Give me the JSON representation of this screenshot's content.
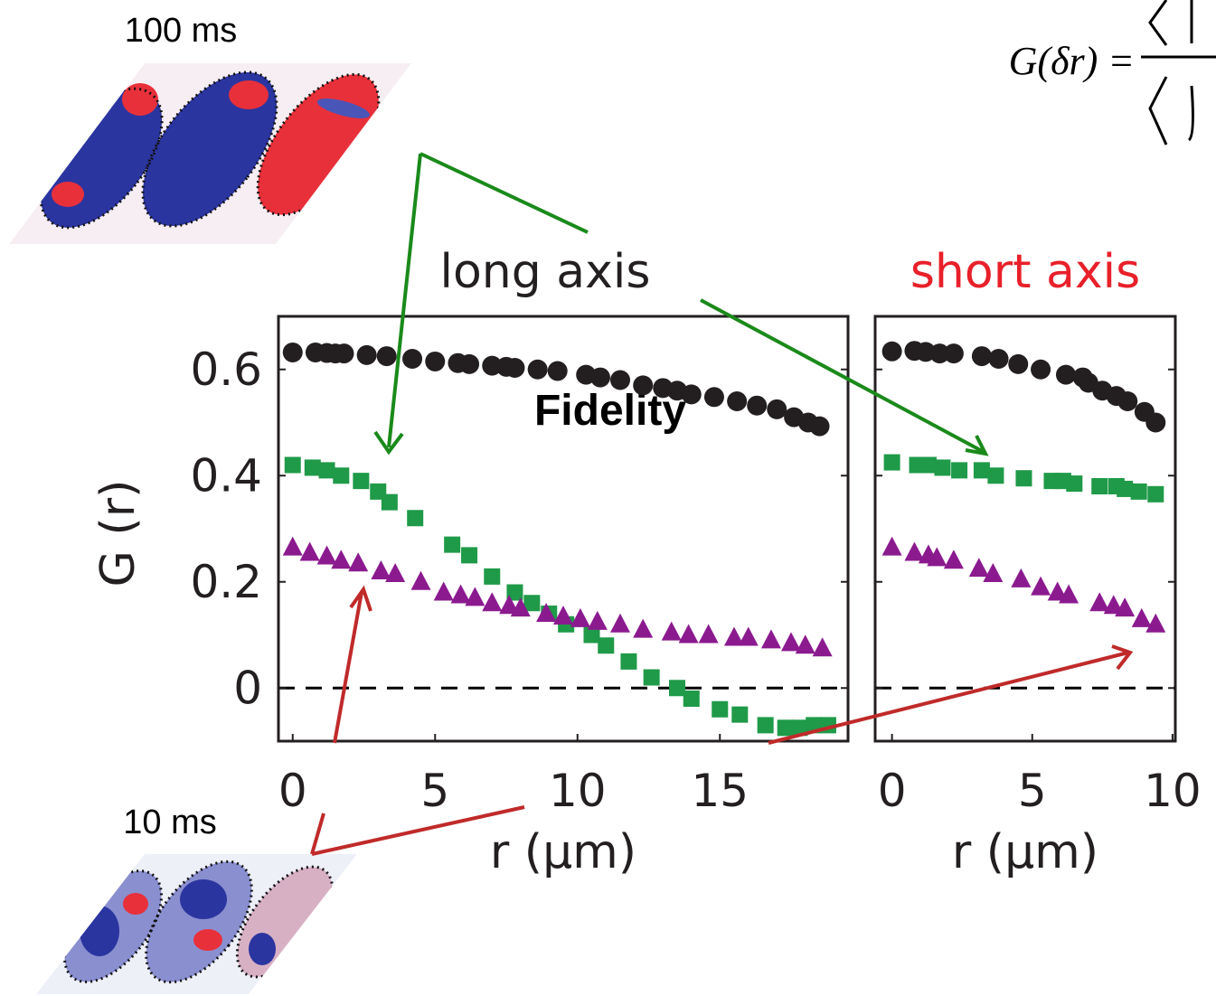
{
  "formula": "G(δr) =",
  "insets": [
    {
      "label": "100 ms"
    },
    {
      "label": "10 ms"
    }
  ],
  "chart_data": [
    {
      "type": "scatter",
      "title": "long axis",
      "title_color": "#231f20",
      "annotation": "Fidelity",
      "ylabel": "G (r)",
      "xlabel": "r (µm)",
      "xlim": [
        -0.5,
        19.5
      ],
      "ylim": [
        -0.1,
        0.7
      ],
      "xticks": [
        0,
        5,
        10,
        15
      ],
      "yticks": [
        0,
        0.2,
        0.4,
        0.6
      ],
      "series": [
        {
          "color": "#231f20",
          "marker": "circle",
          "x": [
            0,
            0.8,
            1.2,
            1.5,
            1.8,
            2.6,
            3.3,
            4.2,
            5.0,
            5.8,
            6.2,
            7.0,
            7.5,
            7.8,
            8.6,
            9.3,
            10.3,
            10.8,
            11.5,
            12.3,
            13.0,
            13.5,
            14.0,
            14.8,
            15.6,
            16.3,
            17.0,
            17.6,
            18.1,
            18.5
          ],
          "values": [
            0.632,
            0.632,
            0.631,
            0.63,
            0.63,
            0.627,
            0.625,
            0.62,
            0.615,
            0.612,
            0.61,
            0.607,
            0.605,
            0.603,
            0.6,
            0.597,
            0.59,
            0.585,
            0.58,
            0.57,
            0.565,
            0.56,
            0.553,
            0.548,
            0.54,
            0.532,
            0.525,
            0.51,
            0.5,
            0.493
          ]
        },
        {
          "color": "#1f9a48",
          "marker": "square",
          "x": [
            0,
            0.7,
            1.2,
            1.7,
            2.4,
            3.0,
            3.4,
            4.3,
            5.6,
            6.2,
            7.0,
            7.8,
            8.4,
            9.0,
            9.6,
            10.5,
            11.0,
            11.8,
            12.6,
            13.5,
            14.0,
            15.0,
            15.7,
            16.6,
            17.3,
            17.8,
            18.3,
            18.8
          ],
          "values": [
            0.42,
            0.415,
            0.41,
            0.4,
            0.39,
            0.37,
            0.35,
            0.32,
            0.27,
            0.25,
            0.21,
            0.18,
            0.16,
            0.14,
            0.12,
            0.1,
            0.08,
            0.05,
            0.02,
            0,
            -0.02,
            -0.04,
            -0.05,
            -0.07,
            -0.075,
            -0.075,
            -0.07,
            -0.07
          ]
        },
        {
          "color": "#8b1a8f",
          "marker": "triangle",
          "x": [
            0,
            0.6,
            1.2,
            1.7,
            2.3,
            3.1,
            3.6,
            4.5,
            5.3,
            5.9,
            6.4,
            7.0,
            7.6,
            8.0,
            8.9,
            9.5,
            10.1,
            10.7,
            11.5,
            12.3,
            13.3,
            13.9,
            14.6,
            15.5,
            16.0,
            16.8,
            17.5,
            18.0,
            18.6
          ],
          "values": [
            0.265,
            0.255,
            0.248,
            0.24,
            0.235,
            0.22,
            0.215,
            0.2,
            0.18,
            0.175,
            0.17,
            0.16,
            0.155,
            0.15,
            0.14,
            0.135,
            0.13,
            0.125,
            0.12,
            0.11,
            0.105,
            0.1,
            0.1,
            0.095,
            0.095,
            0.09,
            0.085,
            0.08,
            0.075
          ]
        }
      ]
    },
    {
      "type": "scatter",
      "title": "short axis",
      "title_color": "#e8202a",
      "xlabel": "r (µm)",
      "xlim": [
        -0.6,
        10.1
      ],
      "ylim": [
        -0.1,
        0.7
      ],
      "xticks": [
        0,
        5,
        10
      ],
      "yticks": [
        0,
        0.2,
        0.4,
        0.6
      ],
      "series": [
        {
          "color": "#231f20",
          "marker": "circle",
          "x": [
            0,
            0.8,
            1.2,
            1.7,
            2.2,
            3.2,
            3.8,
            4.5,
            5.3,
            6.2,
            6.8,
            7.0,
            7.5,
            8.0,
            8.4,
            9.0,
            9.4
          ],
          "values": [
            0.634,
            0.635,
            0.633,
            0.63,
            0.63,
            0.625,
            0.62,
            0.61,
            0.6,
            0.59,
            0.585,
            0.575,
            0.56,
            0.55,
            0.54,
            0.52,
            0.5
          ]
        },
        {
          "color": "#1f9a48",
          "marker": "square",
          "x": [
            0,
            0.9,
            1.3,
            1.8,
            2.4,
            3.2,
            3.7,
            4.7,
            5.7,
            6.1,
            6.5,
            7.4,
            8.0,
            8.3,
            8.8,
            9.4
          ],
          "values": [
            0.425,
            0.42,
            0.42,
            0.415,
            0.41,
            0.41,
            0.4,
            0.395,
            0.39,
            0.39,
            0.385,
            0.38,
            0.38,
            0.375,
            0.37,
            0.365
          ]
        },
        {
          "color": "#8b1a8f",
          "marker": "triangle",
          "x": [
            0,
            0.8,
            1.3,
            1.6,
            2.2,
            3.1,
            3.6,
            4.6,
            5.3,
            5.9,
            6.3,
            7.4,
            7.9,
            8.3,
            8.9,
            9.4
          ],
          "values": [
            0.265,
            0.255,
            0.25,
            0.245,
            0.24,
            0.225,
            0.215,
            0.205,
            0.19,
            0.18,
            0.175,
            0.16,
            0.155,
            0.15,
            0.13,
            0.12
          ]
        }
      ]
    }
  ]
}
